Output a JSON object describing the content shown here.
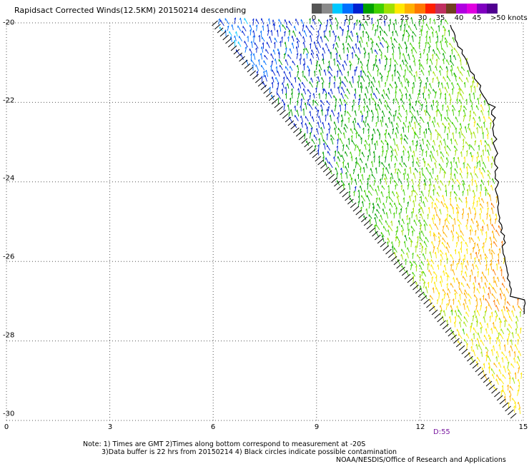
{
  "title": "Rapidsact Corrected Winds(12.5KM) 20150214 descending",
  "scale": {
    "labels": [
      "0",
      "5",
      "10",
      "15",
      "20",
      "25",
      "30",
      "35",
      "40",
      "45",
      ">50 knots"
    ],
    "colors": [
      "#555555",
      "#8a8a8a",
      "#00c8ff",
      "#0070ff",
      "#0020d0",
      "#00a000",
      "#40d000",
      "#a0e000",
      "#ffe800",
      "#ffb000",
      "#ff7800",
      "#ff2000",
      "#c03060",
      "#704020",
      "#b000e0",
      "#e000e0",
      "#8000c0",
      "#500090"
    ]
  },
  "axes": {
    "lat_labels": [
      "-20",
      "-22",
      "-24",
      "-26",
      "-28",
      "-30"
    ],
    "lon_labels": [
      "0",
      "3",
      "6",
      "9",
      "12",
      "15"
    ],
    "lat_range": [
      -30,
      -20
    ],
    "lon_range": [
      0,
      15
    ]
  },
  "pass_time": "D:55",
  "notes": {
    "line1": "Note: 1) Times are GMT 2)Times along bottom correspond to measurement at -20S",
    "line2": "3)Data buffer is 22 hrs from 20150214 4) Black circles indicate possible contamination",
    "line3": "NOAA/NESDIS/Office of Research and Applications"
  }
}
